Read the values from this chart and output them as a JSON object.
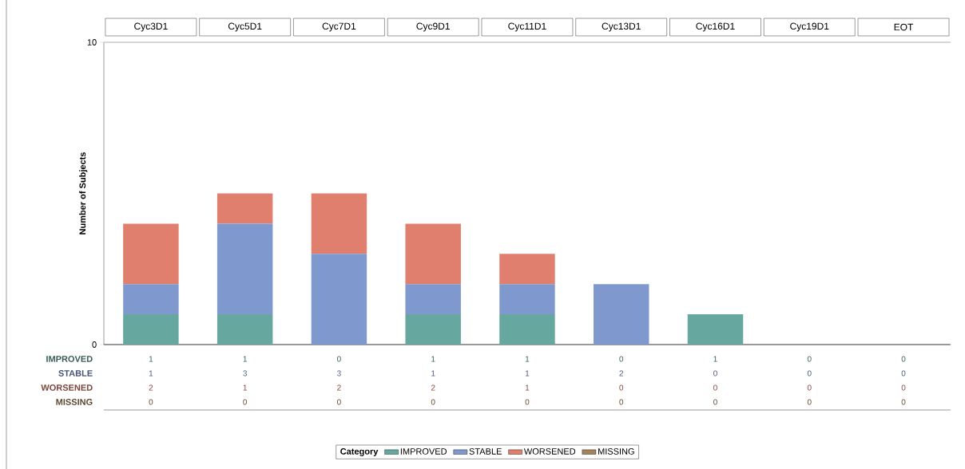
{
  "chart_data": {
    "type": "bar",
    "stacked": true,
    "ylabel": "Number of Subjects",
    "legend_title": "Category",
    "legend": "bottom",
    "data_labels": true,
    "categories": [
      "Cyc3D1",
      "Cyc5D1",
      "Cyc7D1",
      "Cyc9D1",
      "Cyc11D1",
      "Cyc13D1",
      "Cyc16D1",
      "Cyc19D1",
      "EOT"
    ],
    "ylim": [
      0,
      10
    ],
    "yticks": [
      0,
      10
    ],
    "series": [
      {
        "name": "IMPROVED",
        "color": "#66a8a0",
        "values": [
          1,
          1,
          0,
          1,
          1,
          0,
          1,
          0,
          0
        ]
      },
      {
        "name": "STABLE",
        "color": "#7f99cf",
        "values": [
          1,
          3,
          3,
          1,
          1,
          2,
          0,
          0,
          0
        ]
      },
      {
        "name": "WORSENED",
        "color": "#e07f6e",
        "values": [
          2,
          1,
          2,
          2,
          1,
          0,
          0,
          0,
          0
        ]
      },
      {
        "name": "MISSING",
        "color": "#a5835a",
        "values": [
          0,
          0,
          0,
          0,
          0,
          0,
          0,
          0,
          0
        ]
      }
    ]
  }
}
